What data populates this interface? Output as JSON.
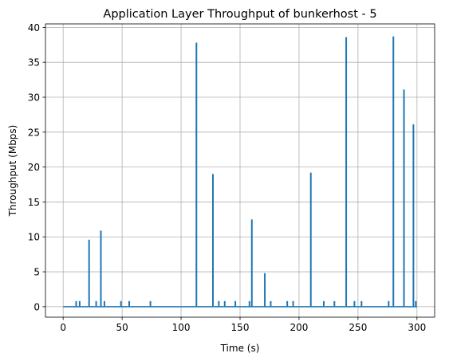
{
  "chart_data": {
    "type": "line",
    "title": "Application Layer Throughput of bunkerhost - 5",
    "xlabel": "Time (s)",
    "ylabel": "Throughput (Mbps)",
    "xlim": [
      -15,
      315
    ],
    "ylim": [
      -1.5,
      40.5
    ],
    "xticks": [
      0,
      50,
      100,
      150,
      200,
      250,
      300
    ],
    "yticks": [
      0,
      5,
      10,
      15,
      20,
      25,
      30,
      35,
      40
    ],
    "grid": true,
    "line_color": "#1f77b4",
    "series": [
      {
        "spikes": [
          [
            11,
            0.8
          ],
          [
            14,
            0.8
          ],
          [
            22,
            9.6
          ],
          [
            28,
            0.8
          ],
          [
            32,
            10.9
          ],
          [
            35,
            0.8
          ],
          [
            49,
            0.8
          ],
          [
            56,
            0.8
          ],
          [
            74,
            0.8
          ],
          [
            113,
            37.8
          ],
          [
            127,
            19.0
          ],
          [
            132,
            0.8
          ],
          [
            137,
            0.8
          ],
          [
            146,
            0.8
          ],
          [
            158,
            0.8
          ],
          [
            160,
            12.5
          ],
          [
            171,
            4.8
          ],
          [
            176,
            0.8
          ],
          [
            190,
            0.8
          ],
          [
            195,
            0.8
          ],
          [
            210,
            19.2
          ],
          [
            221,
            0.8
          ],
          [
            230,
            0.8
          ],
          [
            240,
            38.6
          ],
          [
            247,
            0.8
          ],
          [
            253,
            0.8
          ],
          [
            276,
            0.8
          ],
          [
            280,
            38.7
          ],
          [
            289,
            31.1
          ],
          [
            297,
            26.1
          ],
          [
            299,
            0.8
          ]
        ],
        "baseline": 0,
        "x_end": 300
      }
    ]
  }
}
